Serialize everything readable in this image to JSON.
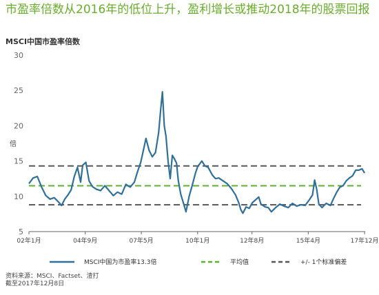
{
  "header": {
    "title": "市盈率倍数从2016年的低位上升，盈利增长或推动2018年的股票回报",
    "subtitle": "MSCI中国市盈率倍数"
  },
  "footer": {
    "source_line1": "资料来源：MSCI、Factset、渣打",
    "source_line2": "截至2017年12月8日"
  },
  "colors": {
    "series": "#2f6f98",
    "average": "#5cb030",
    "band": "#555555",
    "title": "#6aac2e"
  },
  "chart_data": {
    "type": "line",
    "ylabel": "倍",
    "ylim": [
      5,
      30
    ],
    "yticks": [
      5,
      10,
      15,
      20,
      25,
      30
    ],
    "xlim": [
      2002.0,
      2017.95
    ],
    "xticks": [
      {
        "label": "02年1月",
        "x": 2002.0
      },
      {
        "label": "04年9月",
        "x": 2004.67
      },
      {
        "label": "07年5月",
        "x": 2007.33
      },
      {
        "label": "10年1月",
        "x": 2010.0
      },
      {
        "label": "12年8月",
        "x": 2012.58
      },
      {
        "label": "15年4月",
        "x": 2015.25
      },
      {
        "label": "17年12月",
        "x": 2017.92
      }
    ],
    "legend_position": "bottom",
    "series": [
      {
        "name": "MSCI中国为市盈率13.3倍",
        "style": "solid",
        "points": [
          [
            2002.0,
            11.8
          ],
          [
            2002.2,
            12.6
          ],
          [
            2002.4,
            12.8
          ],
          [
            2002.6,
            11.3
          ],
          [
            2002.8,
            10.1
          ],
          [
            2003.0,
            9.6
          ],
          [
            2003.2,
            9.8
          ],
          [
            2003.4,
            9.2
          ],
          [
            2003.55,
            8.7
          ],
          [
            2003.7,
            9.6
          ],
          [
            2003.85,
            10.2
          ],
          [
            2004.0,
            10.9
          ],
          [
            2004.15,
            12.8
          ],
          [
            2004.3,
            14.1
          ],
          [
            2004.45,
            12.0
          ],
          [
            2004.55,
            14.4
          ],
          [
            2004.7,
            14.8
          ],
          [
            2004.85,
            12.2
          ],
          [
            2005.0,
            11.4
          ],
          [
            2005.2,
            11.0
          ],
          [
            2005.4,
            10.8
          ],
          [
            2005.6,
            11.5
          ],
          [
            2005.8,
            10.8
          ],
          [
            2006.0,
            10.1
          ],
          [
            2006.2,
            10.6
          ],
          [
            2006.4,
            10.3
          ],
          [
            2006.6,
            11.7
          ],
          [
            2006.8,
            11.3
          ],
          [
            2007.0,
            12.0
          ],
          [
            2007.15,
            13.5
          ],
          [
            2007.3,
            14.8
          ],
          [
            2007.45,
            16.8
          ],
          [
            2007.55,
            18.2
          ],
          [
            2007.7,
            16.5
          ],
          [
            2007.85,
            15.6
          ],
          [
            2008.0,
            16.2
          ],
          [
            2008.15,
            19.0
          ],
          [
            2008.25,
            22.3
          ],
          [
            2008.33,
            24.8
          ],
          [
            2008.42,
            20.0
          ],
          [
            2008.5,
            18.5
          ],
          [
            2008.6,
            15.0
          ],
          [
            2008.7,
            12.5
          ],
          [
            2008.8,
            15.8
          ],
          [
            2008.92,
            15.2
          ],
          [
            2009.0,
            14.7
          ],
          [
            2009.08,
            12.3
          ],
          [
            2009.2,
            10.3
          ],
          [
            2009.33,
            9.0
          ],
          [
            2009.45,
            7.8
          ],
          [
            2009.6,
            10.0
          ],
          [
            2009.75,
            11.6
          ],
          [
            2009.9,
            13.3
          ],
          [
            2010.0,
            14.2
          ],
          [
            2010.2,
            15.0
          ],
          [
            2010.35,
            14.3
          ],
          [
            2010.5,
            14.1
          ],
          [
            2010.7,
            13.0
          ],
          [
            2010.85,
            12.5
          ],
          [
            2011.0,
            12.6
          ],
          [
            2011.2,
            12.2
          ],
          [
            2011.4,
            11.8
          ],
          [
            2011.6,
            11.1
          ],
          [
            2011.8,
            10.2
          ],
          [
            2011.95,
            9.1
          ],
          [
            2012.05,
            8.1
          ],
          [
            2012.15,
            7.6
          ],
          [
            2012.3,
            8.5
          ],
          [
            2012.45,
            8.3
          ],
          [
            2012.6,
            9.1
          ],
          [
            2012.75,
            9.5
          ],
          [
            2012.9,
            9.9
          ],
          [
            2013.0,
            8.9
          ],
          [
            2013.2,
            8.5
          ],
          [
            2013.35,
            8.4
          ],
          [
            2013.5,
            7.8
          ],
          [
            2013.7,
            8.4
          ],
          [
            2013.9,
            8.9
          ],
          [
            2014.1,
            8.6
          ],
          [
            2014.3,
            8.4
          ],
          [
            2014.5,
            9.0
          ],
          [
            2014.7,
            8.6
          ],
          [
            2014.9,
            8.8
          ],
          [
            2015.1,
            8.7
          ],
          [
            2015.3,
            9.5
          ],
          [
            2015.45,
            10.2
          ],
          [
            2015.55,
            12.3
          ],
          [
            2015.65,
            11.0
          ],
          [
            2015.75,
            8.9
          ],
          [
            2015.9,
            8.4
          ],
          [
            2016.1,
            9.0
          ],
          [
            2016.3,
            8.7
          ],
          [
            2016.45,
            9.7
          ],
          [
            2016.6,
            10.6
          ],
          [
            2016.75,
            11.3
          ],
          [
            2016.9,
            11.5
          ],
          [
            2017.05,
            12.2
          ],
          [
            2017.2,
            12.6
          ],
          [
            2017.35,
            12.9
          ],
          [
            2017.5,
            13.7
          ],
          [
            2017.65,
            13.7
          ],
          [
            2017.8,
            13.9
          ],
          [
            2017.92,
            13.3
          ]
        ]
      },
      {
        "name": "平均值",
        "style": "dashed",
        "value": 11.5
      },
      {
        "name": "+/- 1个标准偏差",
        "style": "dashed",
        "values": [
          14.3,
          8.8
        ]
      }
    ]
  }
}
